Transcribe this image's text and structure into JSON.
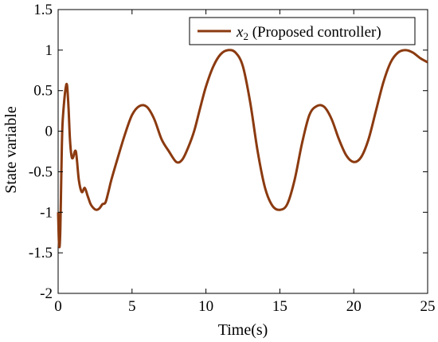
{
  "chart_data": {
    "type": "line",
    "xlabel": "Time(s)",
    "ylabel": "State variable",
    "xlim": [
      0,
      25
    ],
    "ylim": [
      -2,
      1.5
    ],
    "grid": false,
    "legend_position": "top-right",
    "xticks": [
      "0",
      "5",
      "10",
      "15",
      "20",
      "25"
    ],
    "yticks": [
      "-2",
      "-1.5",
      "-1",
      "-0.5",
      "0",
      "0.5",
      "1",
      "1.5"
    ],
    "legend": {
      "math": "x",
      "subscript": "2",
      "label": " (Proposed controller)"
    },
    "series": [
      {
        "name": "x2 (Proposed controller)",
        "color": "#8b3a10",
        "x": [
          0,
          0.05,
          0.1,
          0.15,
          0.2,
          0.25,
          0.3,
          0.4,
          0.5,
          0.6,
          0.7,
          0.8,
          0.9,
          1.0,
          1.2,
          1.4,
          1.6,
          1.8,
          2.0,
          2.2,
          2.4,
          2.6,
          2.8,
          3.0,
          3.2,
          3.4,
          3.6,
          4.0,
          4.5,
          5.0,
          5.5,
          6.0,
          6.5,
          7.0,
          7.5,
          8.0,
          8.4,
          8.8,
          9.2,
          9.6,
          10.0,
          10.5,
          11.0,
          11.5,
          12.0,
          12.5,
          13.0,
          13.5,
          14.0,
          14.5,
          15.0,
          15.5,
          16.0,
          16.5,
          17.0,
          17.5,
          18.0,
          18.5,
          19.0,
          19.5,
          20.0,
          20.5,
          21.0,
          21.5,
          22.0,
          22.5,
          23.0,
          23.5,
          24.0,
          24.5,
          25.0
        ],
        "y": [
          -1.0,
          -1.35,
          -1.42,
          -1.2,
          -0.7,
          -0.2,
          0.1,
          0.35,
          0.52,
          0.57,
          0.3,
          -0.1,
          -0.3,
          -0.33,
          -0.25,
          -0.6,
          -0.75,
          -0.7,
          -0.8,
          -0.9,
          -0.95,
          -0.97,
          -0.95,
          -0.9,
          -0.88,
          -0.75,
          -0.6,
          -0.35,
          -0.05,
          0.2,
          0.31,
          0.3,
          0.15,
          -0.1,
          -0.25,
          -0.38,
          -0.35,
          -0.2,
          0.0,
          0.28,
          0.55,
          0.8,
          0.95,
          1.0,
          0.97,
          0.8,
          0.35,
          -0.25,
          -0.7,
          -0.92,
          -0.97,
          -0.9,
          -0.6,
          -0.15,
          0.2,
          0.31,
          0.3,
          0.15,
          -0.1,
          -0.3,
          -0.38,
          -0.32,
          -0.1,
          0.25,
          0.6,
          0.85,
          0.97,
          1.0,
          0.97,
          0.9,
          0.85
        ]
      }
    ]
  }
}
